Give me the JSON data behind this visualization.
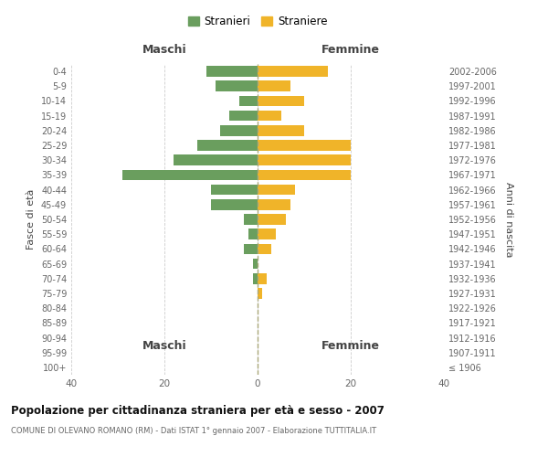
{
  "age_groups": [
    "100+",
    "95-99",
    "90-94",
    "85-89",
    "80-84",
    "75-79",
    "70-74",
    "65-69",
    "60-64",
    "55-59",
    "50-54",
    "45-49",
    "40-44",
    "35-39",
    "30-34",
    "25-29",
    "20-24",
    "15-19",
    "10-14",
    "5-9",
    "0-4"
  ],
  "birth_years": [
    "≤ 1906",
    "1907-1911",
    "1912-1916",
    "1917-1921",
    "1922-1926",
    "1927-1931",
    "1932-1936",
    "1937-1941",
    "1942-1946",
    "1947-1951",
    "1952-1956",
    "1957-1961",
    "1962-1966",
    "1967-1971",
    "1972-1976",
    "1977-1981",
    "1982-1986",
    "1987-1991",
    "1992-1996",
    "1997-2001",
    "2002-2006"
  ],
  "maschi": [
    0,
    0,
    0,
    0,
    0,
    0,
    1,
    1,
    3,
    2,
    3,
    10,
    10,
    29,
    18,
    13,
    8,
    6,
    4,
    9,
    11
  ],
  "femmine": [
    0,
    0,
    0,
    0,
    0,
    1,
    2,
    0,
    3,
    4,
    6,
    7,
    8,
    20,
    20,
    20,
    10,
    5,
    10,
    7,
    15
  ],
  "color_maschi": "#6a9e5e",
  "color_femmine": "#f0b429",
  "xlim": 40,
  "title": "Popolazione per cittadinanza straniera per età e sesso - 2007",
  "subtitle": "COMUNE DI OLEVANO ROMANO (RM) - Dati ISTAT 1° gennaio 2007 - Elaborazione TUTTITALIA.IT",
  "xlabel_left": "Maschi",
  "xlabel_right": "Femmine",
  "ylabel_left": "Fasce di età",
  "ylabel_right": "Anni di nascita",
  "legend_maschi": "Stranieri",
  "legend_femmine": "Straniere",
  "bg_color": "#ffffff",
  "grid_color": "#cccccc",
  "xticks": [
    40,
    20,
    0,
    20,
    40
  ]
}
